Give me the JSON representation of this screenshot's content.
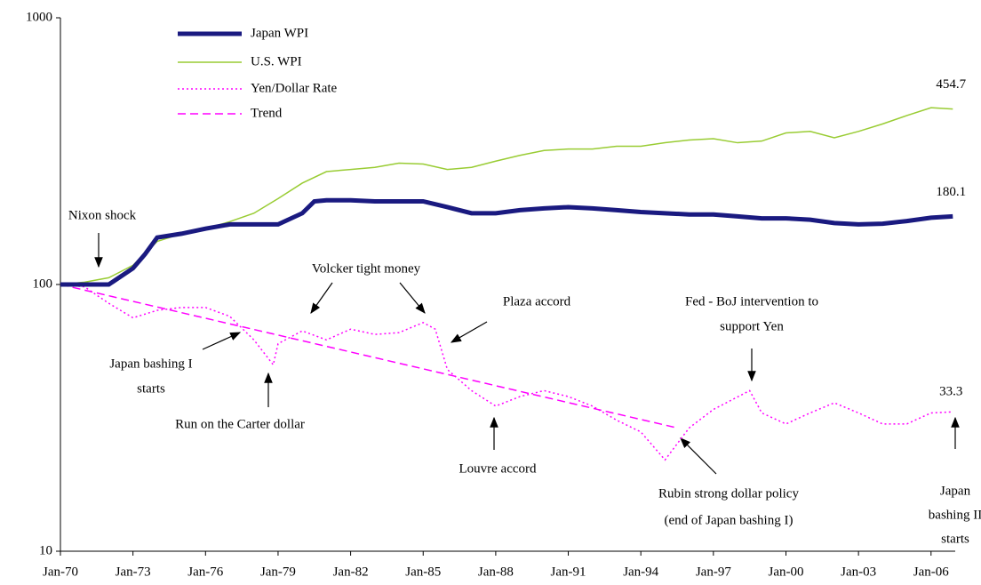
{
  "chart_data": {
    "type": "line",
    "log_scale": true,
    "xlim": [
      1970,
      2007
    ],
    "ylim": [
      10,
      1000
    ],
    "yticks": [
      10,
      100,
      1000
    ],
    "xticks": [
      {
        "value": 1970,
        "label": "Jan-70"
      },
      {
        "value": 1973,
        "label": "Jan-73"
      },
      {
        "value": 1976,
        "label": "Jan-76"
      },
      {
        "value": 1979,
        "label": "Jan-79"
      },
      {
        "value": 1982,
        "label": "Jan-82"
      },
      {
        "value": 1985,
        "label": "Jan-85"
      },
      {
        "value": 1988,
        "label": "Jan-88"
      },
      {
        "value": 1991,
        "label": "Jan-91"
      },
      {
        "value": 1994,
        "label": "Jan-94"
      },
      {
        "value": 1997,
        "label": "Jan-97"
      },
      {
        "value": 2000,
        "label": "Jan-00"
      },
      {
        "value": 2003,
        "label": "Jan-03"
      },
      {
        "value": 2006,
        "label": "Jan-06"
      }
    ],
    "legend": "top-left",
    "series": [
      {
        "name": "Japan WPI",
        "color": "#1a1a80",
        "width": 5,
        "dash": "solid",
        "x": [
          1970,
          1971,
          1972,
          1973,
          1973.5,
          1974,
          1975,
          1976,
          1977,
          1978,
          1979,
          1980,
          1980.5,
          1981,
          1982,
          1983,
          1984,
          1985,
          1986,
          1987,
          1988,
          1989,
          1990,
          1991,
          1992,
          1993,
          1994,
          1995,
          1996,
          1997,
          1998,
          1999,
          2000,
          2001,
          2002,
          2003,
          2004,
          2005,
          2006,
          2006.9
        ],
        "values": [
          100,
          100,
          100,
          115,
          130,
          150,
          155,
          162,
          168,
          168,
          168,
          185,
          205,
          207,
          207,
          205,
          205,
          205,
          195,
          185,
          185,
          190,
          193,
          195,
          193,
          190,
          187,
          185,
          183,
          183,
          180,
          177,
          177,
          175,
          170,
          168,
          169,
          173,
          178,
          180.1
        ]
      },
      {
        "name": "U.S. WPI",
        "color": "#99cc33",
        "width": 1.5,
        "dash": "solid",
        "x": [
          1970,
          1971,
          1972,
          1973,
          1974,
          1975,
          1976,
          1977,
          1978,
          1979,
          1980,
          1981,
          1982,
          1983,
          1984,
          1985,
          1986,
          1987,
          1988,
          1989,
          1990,
          1991,
          1992,
          1993,
          1994,
          1995,
          1996,
          1997,
          1998,
          1999,
          2000,
          2001,
          2002,
          2003,
          2004,
          2005,
          2006,
          2006.9
        ],
        "values": [
          100,
          102,
          106,
          118,
          145,
          155,
          162,
          172,
          185,
          210,
          240,
          265,
          270,
          275,
          285,
          283,
          270,
          275,
          290,
          305,
          318,
          322,
          322,
          330,
          330,
          340,
          348,
          352,
          340,
          345,
          370,
          375,
          355,
          375,
          400,
          430,
          460,
          454.7
        ]
      },
      {
        "name": "Yen/Dollar Rate",
        "color": "#ff00ff",
        "width": 1.5,
        "dash": "dotted",
        "x": [
          1970,
          1971,
          1972,
          1973,
          1974,
          1975,
          1976,
          1977,
          1978,
          1978.8,
          1979,
          1980,
          1981,
          1982,
          1983,
          1984,
          1985,
          1985.5,
          1986,
          1987,
          1988,
          1989,
          1990,
          1991,
          1992,
          1993,
          1994,
          1995,
          1996,
          1997,
          1998.5,
          1999,
          2000,
          2001,
          2002,
          2003,
          2004,
          2005,
          2006,
          2006.9
        ],
        "values": [
          100,
          98,
          85,
          75,
          80,
          82,
          82,
          76,
          62,
          50,
          60,
          67,
          62,
          68,
          65,
          66,
          72,
          68,
          48,
          40,
          35,
          38,
          40,
          38,
          35,
          31,
          28,
          22,
          29,
          34,
          40,
          33,
          30,
          33,
          36,
          33,
          30,
          30,
          33,
          33.3
        ]
      },
      {
        "name": "Trend",
        "color": "#ff00ff",
        "width": 1.5,
        "dash": "dashed",
        "x": [
          1970,
          1995.5
        ],
        "values": [
          100,
          29
        ]
      }
    ],
    "value_labels": [
      "180.1",
      "454.7",
      "33.3"
    ],
    "annotations": [
      [
        "Nixon shock"
      ],
      [
        "Volcker tight money"
      ],
      [
        "Plaza accord"
      ],
      [
        "Fed - BoJ intervention to",
        "support Yen"
      ],
      [
        "Japan bashing I",
        "starts"
      ],
      [
        "Run on the Carter dollar"
      ],
      [
        "Louvre accord"
      ],
      [
        "Rubin strong dollar policy",
        "(end of Japan bashing I)"
      ],
      [
        "Japan",
        "bashing II",
        "starts"
      ]
    ]
  }
}
